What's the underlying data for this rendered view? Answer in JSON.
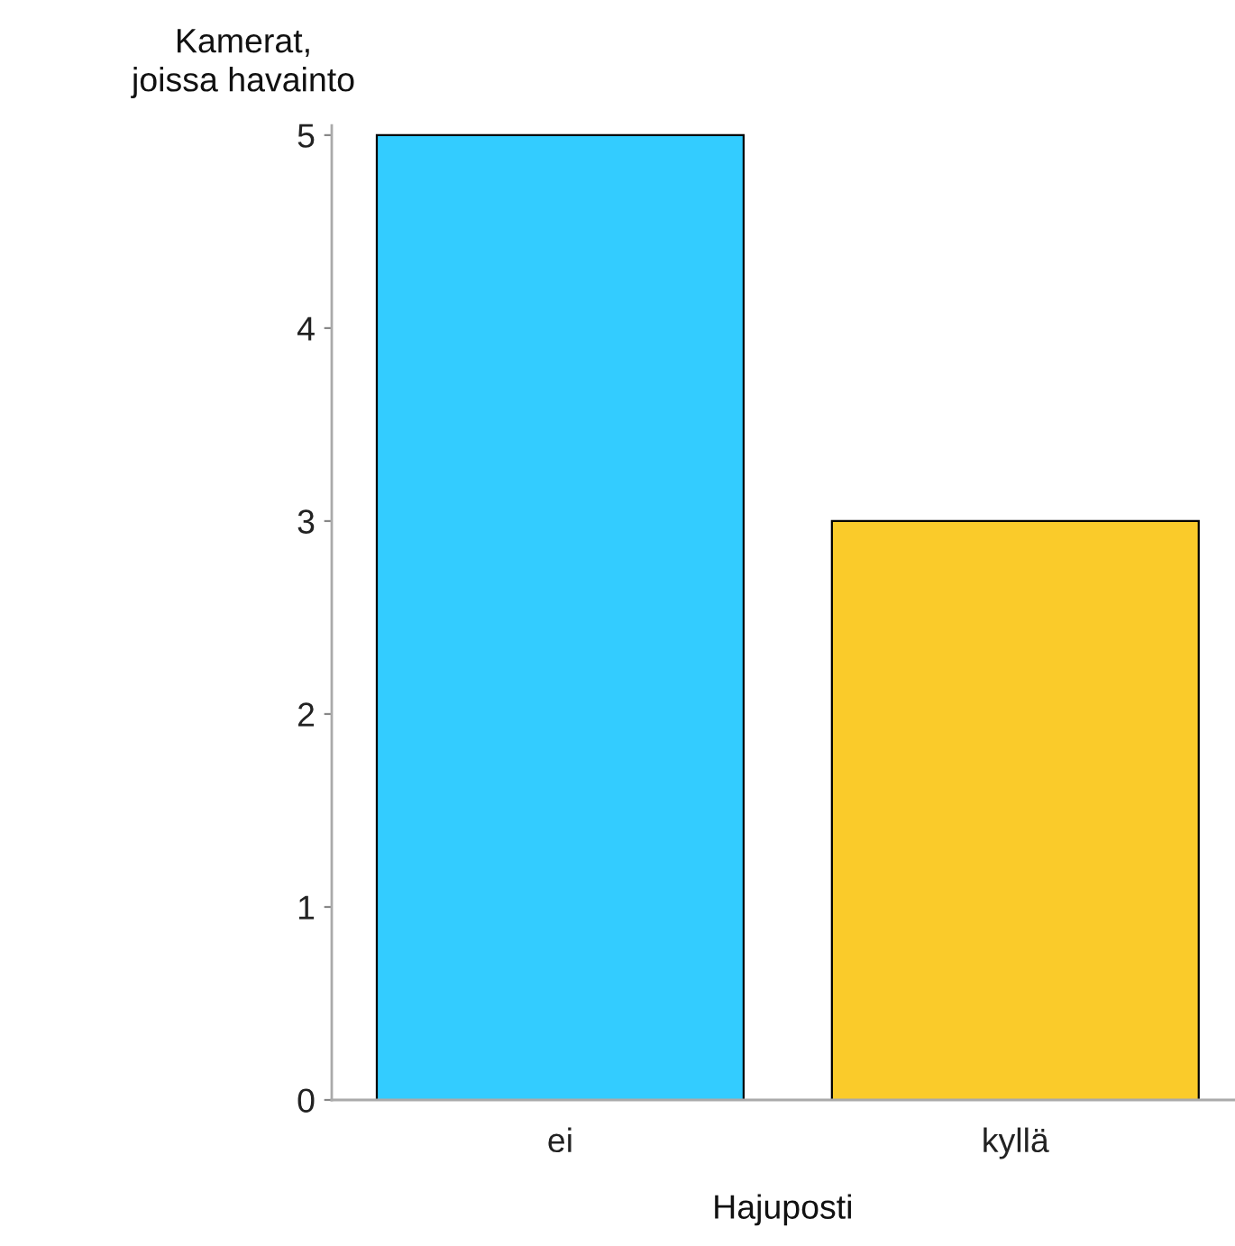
{
  "chart_data": {
    "type": "bar",
    "xlabel": "Hajuposti",
    "ylabel": "Kamerat,\njoissa havainto",
    "categories": [
      "ei",
      "kyllä"
    ],
    "values": [
      5,
      3
    ],
    "colors": [
      "#33ccff",
      "#facb2a"
    ],
    "ylim": [
      0,
      5.05
    ],
    "yticks": [
      0,
      1,
      2,
      3,
      4,
      5
    ],
    "grid": false
  }
}
